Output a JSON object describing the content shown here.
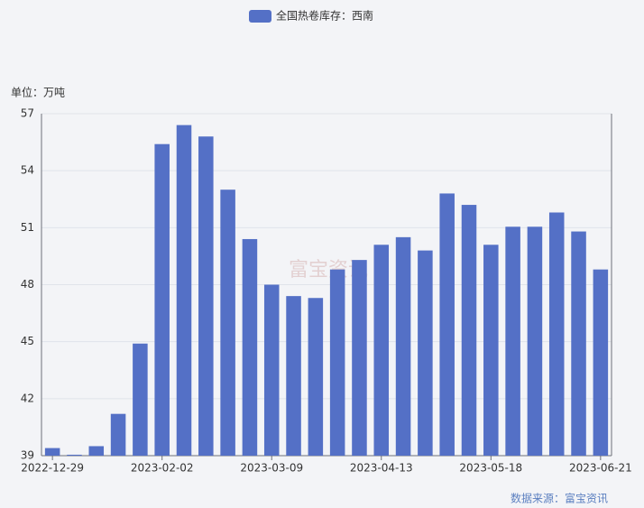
{
  "chart_data": {
    "type": "bar",
    "legend": "全国热卷库存：西南",
    "unit_label": "单位：万吨",
    "source": "数据来源：富宝资讯",
    "watermark": "富宝资讯",
    "color": "#5470c6",
    "categories": [
      "2022-12-29",
      null,
      null,
      null,
      null,
      "2023-02-02",
      null,
      null,
      null,
      null,
      "2023-03-09",
      null,
      null,
      null,
      null,
      "2023-04-13",
      null,
      null,
      null,
      null,
      "2023-05-18",
      null,
      null,
      null,
      null,
      "2023-06-21"
    ],
    "values": [
      39.4,
      39.05,
      39.5,
      41.2,
      44.9,
      55.4,
      56.4,
      55.8,
      53.0,
      50.4,
      48.0,
      47.4,
      47.3,
      48.8,
      49.3,
      50.1,
      50.5,
      49.8,
      52.8,
      52.2,
      50.1,
      51.05,
      51.05,
      51.8,
      50.8,
      48.8
    ],
    "ylim": [
      39,
      57
    ],
    "yticks": [
      39,
      42,
      45,
      48,
      51,
      54,
      57
    ],
    "grid": true
  }
}
